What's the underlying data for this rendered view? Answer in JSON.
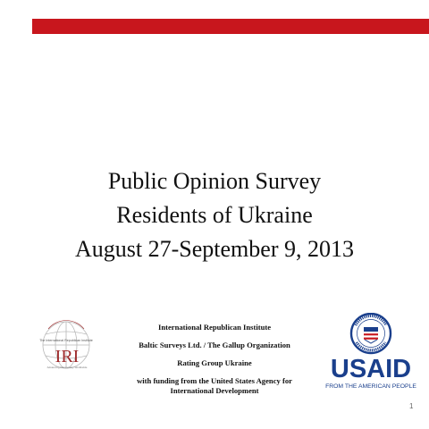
{
  "slide": {
    "accent_color": "#c8161d",
    "title_lines": [
      "Public Opinion Survey",
      "Residents of Ukraine",
      "August 27-September 9, 2013"
    ],
    "credits": [
      "International Republican Institute",
      "Baltic Surveys Ltd. / The Gallup Organization",
      "Rating Group Ukraine",
      "with funding from the United States Agency for",
      "International Development"
    ],
    "page_number": "1"
  },
  "logos": {
    "iri": {
      "icon": "iri-globe-logo-icon",
      "text": "IRI",
      "arc_text": "The International Republican Institute",
      "tagline": "Advancing Democracy Worldwide",
      "color": "#9e2a2b"
    },
    "usaid": {
      "icon": "usaid-seal-icon",
      "text": "USAID",
      "tagline": "FROM THE AMERICAN PEOPLE",
      "color": "#1a3f8c"
    }
  }
}
